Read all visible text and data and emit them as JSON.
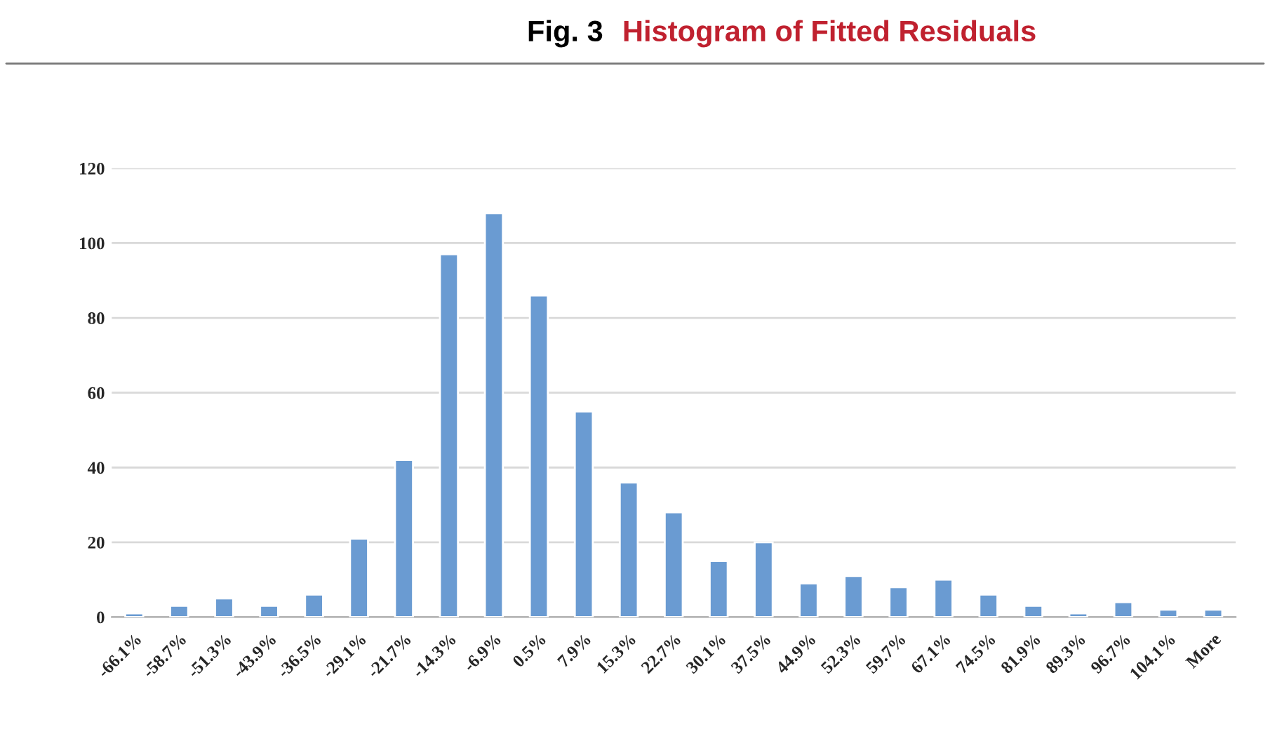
{
  "chart_data": {
    "type": "bar",
    "title": "Fig. 3",
    "subtitle": "Histogram of Fitted Residuals",
    "categories": [
      "-66.1%",
      "-58.7%",
      "-51.3%",
      "-43.9%",
      "-36.5%",
      "-29.1%",
      "-21.7%",
      "-14.3%",
      "-6.9%",
      "0.5%",
      "7.9%",
      "15.3%",
      "22.7%",
      "30.1%",
      "37.5%",
      "44.9%",
      "52.3%",
      "59.7%",
      "67.1%",
      "74.5%",
      "81.9%",
      "89.3%",
      "96.7%",
      "104.1%",
      "More"
    ],
    "values": [
      1,
      3,
      5,
      3,
      6,
      21,
      42,
      97,
      108,
      86,
      55,
      36,
      28,
      15,
      20,
      9,
      11,
      8,
      10,
      6,
      3,
      1,
      4,
      2,
      2
    ],
    "color": "#6a9bd2",
    "ylim": [
      0,
      120
    ],
    "yticks": [
      0,
      20,
      40,
      60,
      80,
      100,
      120
    ],
    "grid": "y",
    "legend": false
  }
}
